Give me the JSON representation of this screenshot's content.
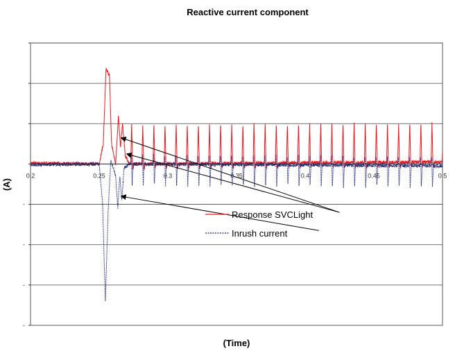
{
  "chart_data": {
    "type": "line",
    "title": "Reactive current component",
    "xlabel": "(Time)",
    "ylabel": "(A)",
    "xlim": [
      0.2,
      0.5
    ],
    "ylim": [
      -4,
      3
    ],
    "x_ticks": [
      {
        "value": 0.2,
        "label": "0.2"
      },
      {
        "value": 0.25,
        "label": "0.25"
      },
      {
        "value": 0.3,
        "label": "0.3"
      },
      {
        "value": 0.35,
        "label": "0.35"
      },
      {
        "value": 0.4,
        "label": "0.4"
      },
      {
        "value": 0.45,
        "label": "0.45"
      },
      {
        "value": 0.5,
        "label": "0.5"
      }
    ],
    "y_ticks": [
      {
        "value": -1,
        "label": "-"
      },
      {
        "value": -2,
        "label": "-"
      },
      {
        "value": -3,
        "label": "-"
      },
      {
        "value": -4,
        "label": "-"
      }
    ],
    "grid": true,
    "legend": "inside-right",
    "series": [
      {
        "name": "Response SVCLight",
        "color": "#e8191f",
        "style": "solid",
        "points": [
          [
            0.2,
            0.02
          ],
          [
            0.25,
            0.0
          ],
          [
            0.253,
            0.5
          ],
          [
            0.255,
            2.35
          ],
          [
            0.2575,
            2.2
          ],
          [
            0.259,
            0.5
          ],
          [
            0.262,
            0.0
          ],
          [
            0.264,
            1.2
          ],
          [
            0.2655,
            0.4
          ],
          [
            0.267,
            1.0
          ],
          [
            0.269,
            0.2
          ],
          [
            0.272,
            0.0
          ],
          [
            0.5,
            0.05
          ]
        ],
        "envelope": {
          "period": 0.0081,
          "start": 0.273,
          "peak": 1.0,
          "trough": -0.1
        }
      },
      {
        "name": "Inrush current",
        "color": "#1a237e",
        "style": "dotted",
        "points": [
          [
            0.2,
            -0.02
          ],
          [
            0.25,
            0.0
          ],
          [
            0.2525,
            -1.0
          ],
          [
            0.2545,
            -3.4
          ],
          [
            0.2565,
            -1.2
          ],
          [
            0.2585,
            0.1
          ],
          [
            0.262,
            -0.3
          ],
          [
            0.2635,
            -1.1
          ],
          [
            0.265,
            -0.3
          ],
          [
            0.2665,
            -0.9
          ],
          [
            0.268,
            -0.1
          ],
          [
            0.272,
            0.0
          ],
          [
            0.5,
            -0.05
          ]
        ],
        "envelope": {
          "period": 0.0081,
          "start": 0.273,
          "peak": 0.25,
          "trough": -0.55
        }
      }
    ],
    "annotations": [
      {
        "target_series": "Response SVCLight",
        "from": [
          0.266,
          0.65
        ],
        "to": [
          0.425,
          -1.2
        ]
      },
      {
        "target_series": "Response SVCLight",
        "from": [
          0.27,
          0.25
        ],
        "to": [
          0.425,
          -1.2
        ]
      },
      {
        "target_series": "Inrush current",
        "from": [
          0.266,
          -0.8
        ],
        "to": [
          0.41,
          -1.65
        ]
      }
    ]
  }
}
